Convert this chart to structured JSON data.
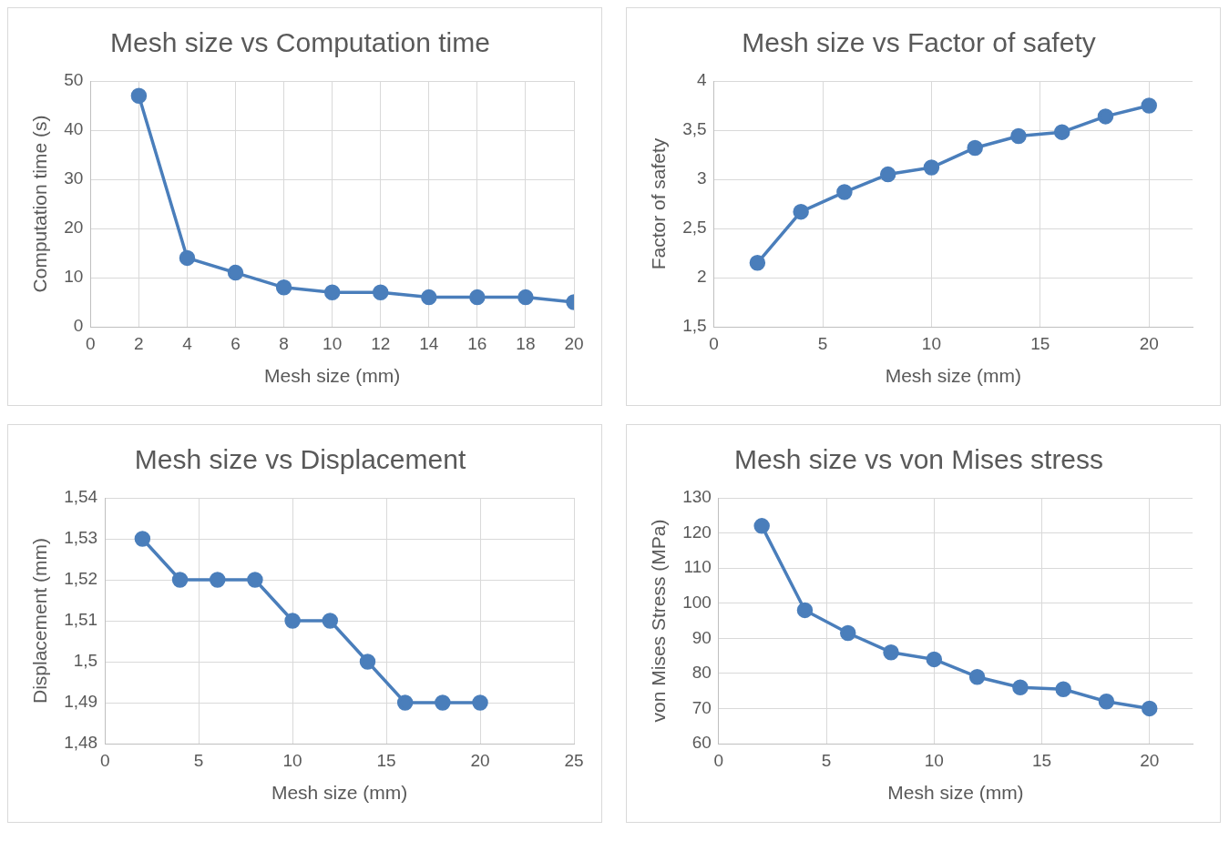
{
  "chart_data": [
    {
      "type": "line",
      "title": "Mesh size vs Computation time",
      "xlabel": "Mesh size (mm)",
      "ylabel": "Computation time (s)",
      "x": [
        2,
        4,
        6,
        8,
        10,
        12,
        14,
        16,
        18,
        20
      ],
      "series": [
        {
          "color": "#4a7ebb",
          "values": [
            47,
            14,
            11,
            8,
            7,
            7,
            6,
            6,
            6,
            5
          ]
        }
      ],
      "xlim": [
        0,
        20
      ],
      "xticks": [
        0,
        2,
        4,
        6,
        8,
        10,
        12,
        14,
        16,
        18,
        20
      ],
      "ylim": [
        0,
        50
      ],
      "yticks": [
        0,
        10,
        20,
        30,
        40,
        50
      ],
      "grid": true,
      "marker": "circle",
      "line_style": "solid",
      "legend": false
    },
    {
      "type": "line",
      "title": "Mesh size vs Factor of safety",
      "xlabel": "Mesh size (mm)",
      "ylabel": "Factor of safety",
      "x": [
        2,
        4,
        6,
        8,
        10,
        12,
        14,
        16,
        18,
        20
      ],
      "series": [
        {
          "color": "#4a7ebb",
          "values": [
            2.15,
            2.67,
            2.87,
            3.05,
            3.12,
            3.32,
            3.44,
            3.48,
            3.64,
            3.75
          ]
        }
      ],
      "xlim": [
        0,
        22
      ],
      "xticks": [
        0,
        5,
        10,
        15,
        20
      ],
      "ylim": [
        1.5,
        4
      ],
      "yticks": [
        {
          "value": 1.5,
          "label": "1,5"
        },
        2,
        {
          "value": 2.5,
          "label": "2,5"
        },
        3,
        {
          "value": 3.5,
          "label": "3,5"
        },
        4
      ],
      "grid": true,
      "marker": "circle",
      "line_style": "solid",
      "legend": false
    },
    {
      "type": "line",
      "title": "Mesh size vs Displacement",
      "xlabel": "Mesh size (mm)",
      "ylabel": "Displacement (mm)",
      "x": [
        2,
        4,
        6,
        8,
        10,
        12,
        14,
        16,
        18,
        20
      ],
      "series": [
        {
          "color": "#4a7ebb",
          "values": [
            1.53,
            1.52,
            1.52,
            1.52,
            1.51,
            1.51,
            1.5,
            1.49,
            1.49,
            1.49
          ]
        }
      ],
      "xlim": [
        0,
        25
      ],
      "xticks": [
        0,
        5,
        10,
        15,
        20,
        25
      ],
      "ylim": [
        1.48,
        1.54
      ],
      "yticks": [
        {
          "value": 1.48,
          "label": "1,48"
        },
        {
          "value": 1.49,
          "label": "1,49"
        },
        {
          "value": 1.5,
          "label": "1,5"
        },
        {
          "value": 1.51,
          "label": "1,51"
        },
        {
          "value": 1.52,
          "label": "1,52"
        },
        {
          "value": 1.53,
          "label": "1,53"
        },
        {
          "value": 1.54,
          "label": "1,54"
        }
      ],
      "grid": true,
      "marker": "circle",
      "line_style": "solid",
      "legend": false
    },
    {
      "type": "line",
      "title": "Mesh size vs von Mises stress",
      "xlabel": "Mesh size (mm)",
      "ylabel": "von Mises Stress (MPa)",
      "x": [
        2,
        4,
        6,
        8,
        10,
        12,
        14,
        16,
        18,
        20
      ],
      "series": [
        {
          "color": "#4a7ebb",
          "values": [
            122,
            98,
            91.5,
            86,
            84,
            79,
            76,
            75.5,
            72,
            70
          ]
        }
      ],
      "xlim": [
        0,
        22
      ],
      "xticks": [
        0,
        5,
        10,
        15,
        20
      ],
      "ylim": [
        60,
        130
      ],
      "yticks": [
        60,
        70,
        80,
        90,
        100,
        110,
        120,
        130
      ],
      "grid": true,
      "marker": "circle",
      "line_style": "solid",
      "legend": false
    }
  ]
}
